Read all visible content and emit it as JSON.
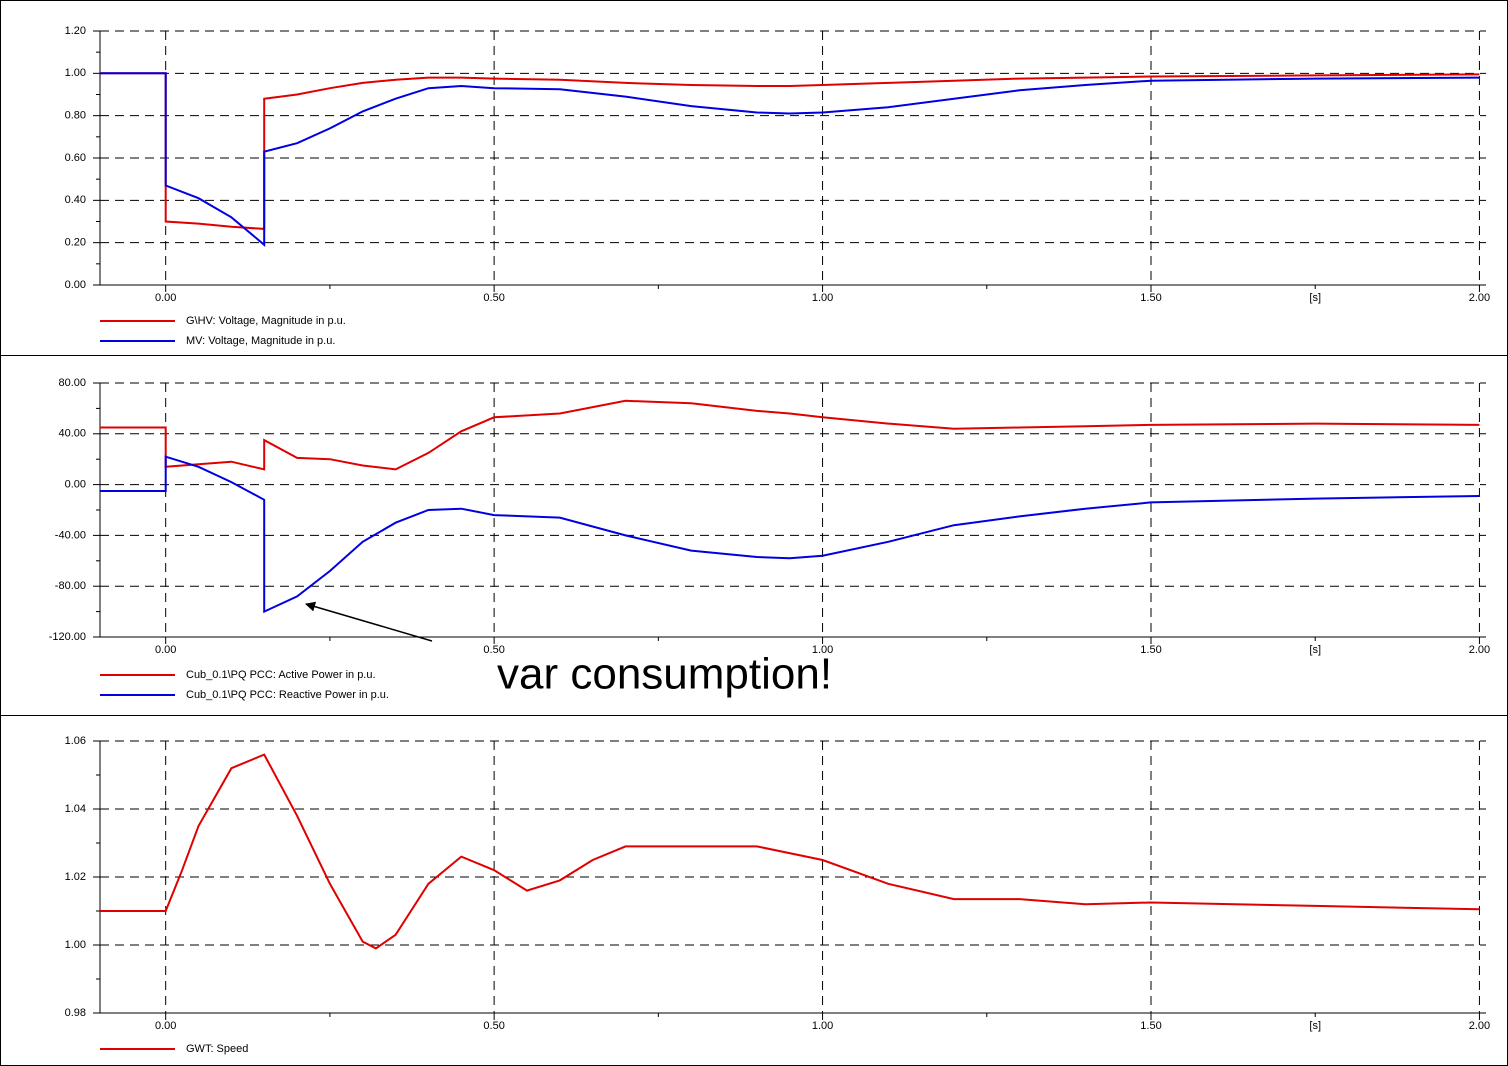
{
  "chart_data": [
    {
      "type": "line",
      "x": [
        -0.1,
        0,
        0,
        0.05,
        0.1,
        0.15,
        0.15,
        0.2,
        0.25,
        0.3,
        0.35,
        0.4,
        0.45,
        0.5,
        0.6,
        0.7,
        0.8,
        0.9,
        0.95,
        1.0,
        1.1,
        1.2,
        1.3,
        1.4,
        1.5,
        1.75,
        2.0
      ],
      "series": [
        {
          "name": "G\\HV: Voltage, Magnitude in p.u.",
          "color": "#e00000",
          "values": [
            1.0,
            1.0,
            0.3,
            0.29,
            0.275,
            0.265,
            0.88,
            0.9,
            0.93,
            0.955,
            0.97,
            0.98,
            0.98,
            0.975,
            0.97,
            0.955,
            0.945,
            0.94,
            0.94,
            0.945,
            0.955,
            0.965,
            0.975,
            0.98,
            0.985,
            0.99,
            0.995
          ]
        },
        {
          "name": "MV: Voltage, Magnitude in p.u.",
          "color": "#0000e0",
          "values": [
            1.0,
            1.0,
            0.47,
            0.41,
            0.32,
            0.19,
            0.63,
            0.67,
            0.74,
            0.82,
            0.88,
            0.93,
            0.94,
            0.93,
            0.925,
            0.89,
            0.845,
            0.815,
            0.81,
            0.815,
            0.84,
            0.88,
            0.92,
            0.945,
            0.965,
            0.975,
            0.98
          ]
        }
      ],
      "xlabel": "[s]",
      "xlim": [
        -0.1,
        2.01
      ],
      "xticks": [
        {
          "value": 0,
          "label": "0.00"
        },
        {
          "value": 0.5,
          "label": "0.50"
        },
        {
          "value": 1,
          "label": "1.00"
        },
        {
          "value": 1.5,
          "label": "1.50"
        },
        {
          "value": 2,
          "label": "2.00"
        }
      ],
      "ylim": [
        0,
        1.2
      ],
      "yticks": [
        {
          "value": 0,
          "label": "0.00"
        },
        {
          "value": 0.2,
          "label": "0.20"
        },
        {
          "value": 0.4,
          "label": "0.40"
        },
        {
          "value": 0.6,
          "label": "0.60"
        },
        {
          "value": 0.8,
          "label": "0.80"
        },
        {
          "value": 1.0,
          "label": "1.00"
        },
        {
          "value": 1.2,
          "label": "1.20"
        }
      ],
      "grid": true
    },
    {
      "type": "line",
      "x": [
        -0.1,
        0,
        0,
        0.05,
        0.1,
        0.15,
        0.15,
        0.2,
        0.25,
        0.3,
        0.35,
        0.4,
        0.45,
        0.5,
        0.6,
        0.7,
        0.8,
        0.9,
        0.95,
        1.0,
        1.1,
        1.2,
        1.3,
        1.4,
        1.5,
        1.75,
        2.0
      ],
      "series": [
        {
          "name": "Cub_0.1\\PQ PCC: Active Power in p.u.",
          "color": "#e00000",
          "values": [
            45,
            45,
            14,
            16,
            18,
            12,
            35,
            21,
            20,
            15,
            12,
            25,
            42,
            53,
            56,
            66,
            64,
            58,
            56,
            53,
            48,
            44,
            45,
            46,
            47,
            48,
            47
          ]
        },
        {
          "name": "Cub_0.1\\PQ PCC: Reactive Power in p.u.",
          "color": "#0000e0",
          "values": [
            -5,
            -5,
            22,
            14,
            2,
            -12,
            -100,
            -88,
            -68,
            -45,
            -30,
            -20,
            -19,
            -24,
            -26,
            -40,
            -52,
            -57,
            -58,
            -56,
            -45,
            -32,
            -25,
            -19,
            -14,
            -11,
            -9
          ]
        }
      ],
      "annotation": "var consumption!",
      "xlabel": "[s]",
      "xlim": [
        -0.1,
        2.01
      ],
      "xticks": [
        {
          "value": 0,
          "label": "0.00"
        },
        {
          "value": 0.5,
          "label": "0.50"
        },
        {
          "value": 1,
          "label": "1.00"
        },
        {
          "value": 1.5,
          "label": "1.50"
        },
        {
          "value": 2,
          "label": "2.00"
        }
      ],
      "ylim": [
        -120,
        80
      ],
      "yticks": [
        {
          "value": -120,
          "label": "-120.00"
        },
        {
          "value": -80,
          "label": "-80.00"
        },
        {
          "value": -40,
          "label": "-40.00"
        },
        {
          "value": 0,
          "label": "0.00"
        },
        {
          "value": 40,
          "label": "40.00"
        },
        {
          "value": 80,
          "label": "80.00"
        }
      ],
      "grid": true
    },
    {
      "type": "line",
      "x": [
        -0.1,
        0,
        0.025,
        0.05,
        0.1,
        0.15,
        0.2,
        0.25,
        0.3,
        0.32,
        0.35,
        0.4,
        0.45,
        0.5,
        0.55,
        0.6,
        0.65,
        0.7,
        0.8,
        0.9,
        1.0,
        1.1,
        1.2,
        1.3,
        1.4,
        1.5,
        1.75,
        2.0
      ],
      "series": [
        {
          "name": "GWT: Speed",
          "color": "#e00000",
          "values": [
            1.01,
            1.01,
            1.022,
            1.035,
            1.052,
            1.056,
            1.038,
            1.018,
            1.001,
            0.999,
            1.003,
            1.018,
            1.026,
            1.022,
            1.016,
            1.019,
            1.025,
            1.029,
            1.029,
            1.029,
            1.025,
            1.018,
            1.0135,
            1.0135,
            1.012,
            1.0125,
            1.0115,
            1.0105
          ]
        }
      ],
      "xlabel": "[s]",
      "xlim": [
        -0.1,
        2.01
      ],
      "xticks": [
        {
          "value": 0,
          "label": "0.00"
        },
        {
          "value": 0.5,
          "label": "0.50"
        },
        {
          "value": 1,
          "label": "1.00"
        },
        {
          "value": 1.5,
          "label": "1.50"
        },
        {
          "value": 2,
          "label": "2.00"
        }
      ],
      "ylim": [
        0.98,
        1.06
      ],
      "yticks": [
        {
          "value": 0.98,
          "label": "0.98"
        },
        {
          "value": 1.0,
          "label": "1.00"
        },
        {
          "value": 1.02,
          "label": "1.02"
        },
        {
          "value": 1.04,
          "label": "1.04"
        },
        {
          "value": 1.06,
          "label": "1.06"
        }
      ],
      "grid": true
    }
  ]
}
